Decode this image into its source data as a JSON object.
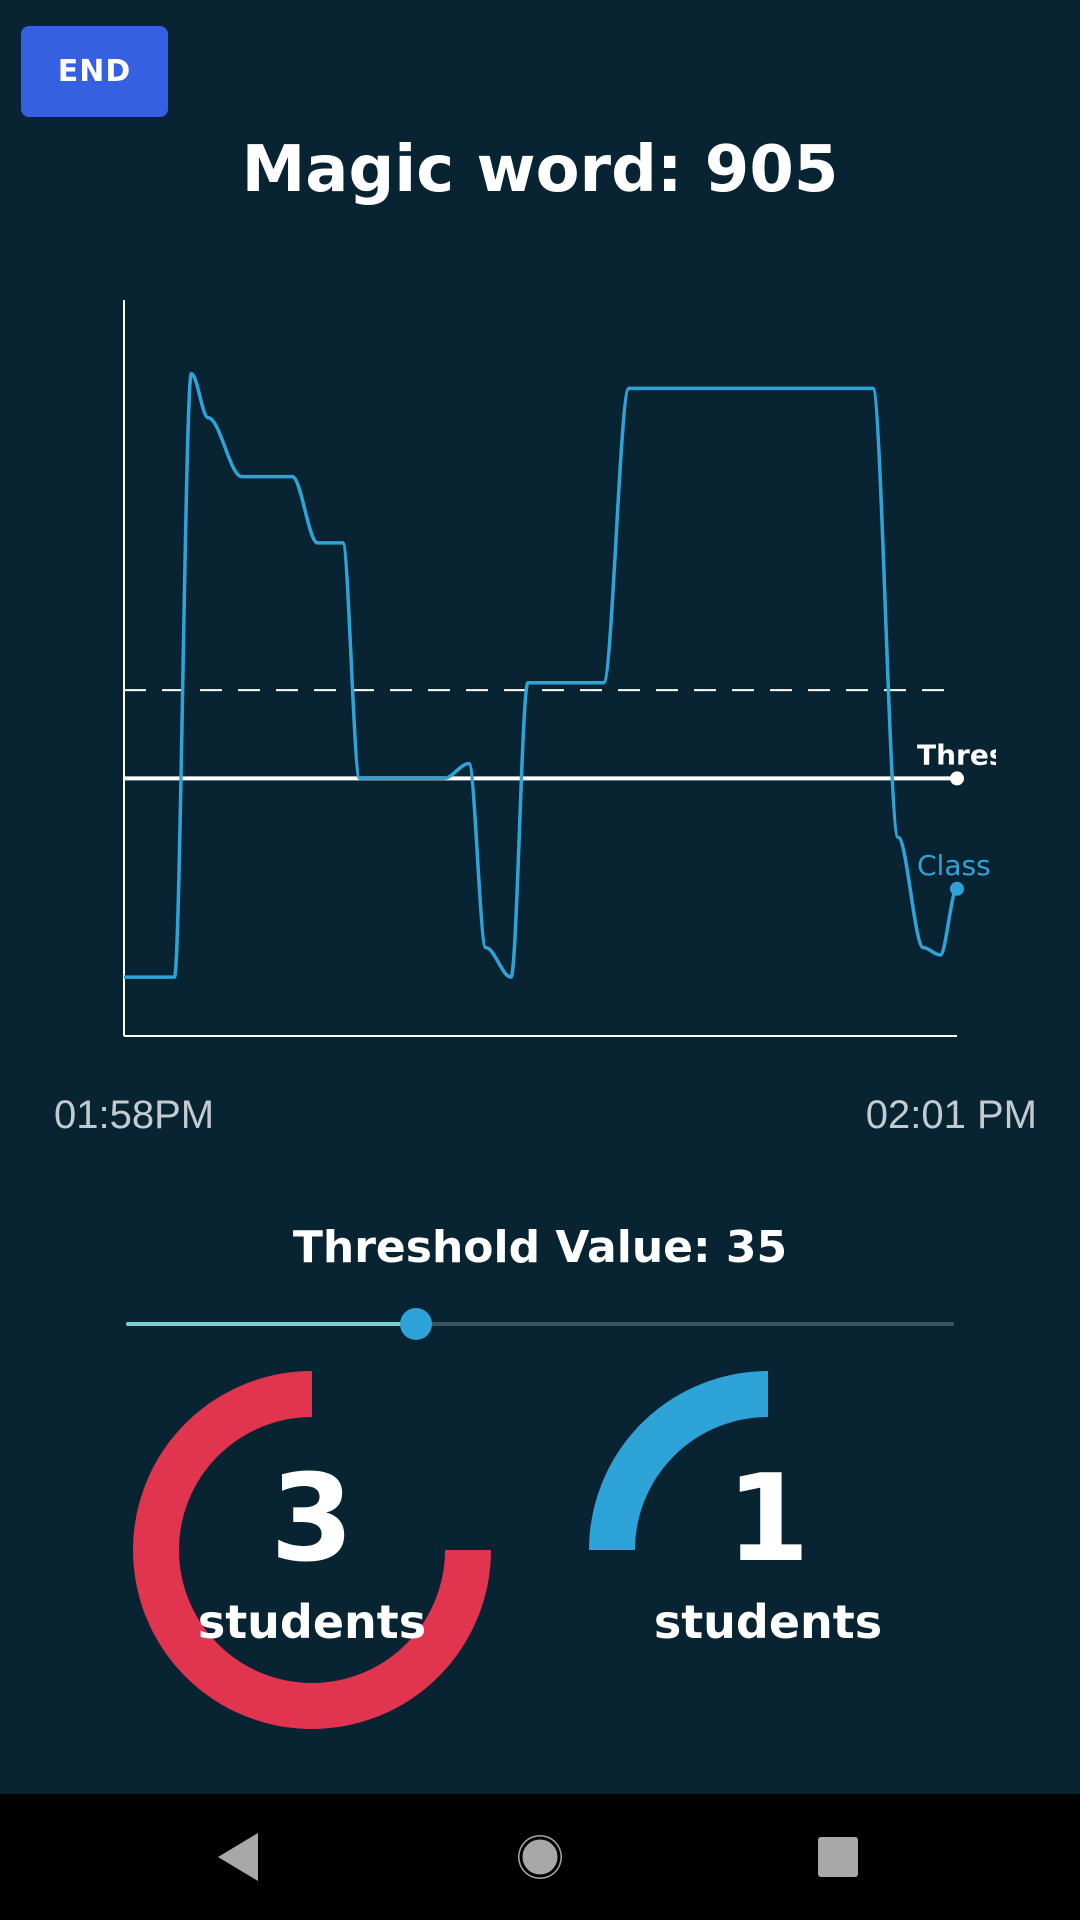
{
  "header": {
    "end_label": "END",
    "magic_word": "Magic word: 905"
  },
  "colors": {
    "background": "#082433",
    "class_line": "#2ea3d8",
    "threshold_line": "#ffffff",
    "end_button": "#3560e0",
    "gauge_red": "#e0344f",
    "gauge_blue": "#2ea3d8"
  },
  "chart_data": {
    "type": "line",
    "x_start_label": "01:58PM",
    "x_end_label": "02:01 PM",
    "ylim": [
      0,
      100
    ],
    "series": [
      {
        "name": "Class",
        "color": "#2ea3d8",
        "points": [
          [
            0,
            8
          ],
          [
            6,
            8
          ],
          [
            8,
            90
          ],
          [
            10,
            84
          ],
          [
            14,
            76
          ],
          [
            20,
            76
          ],
          [
            23,
            67
          ],
          [
            26,
            67
          ],
          [
            28,
            35
          ],
          [
            38,
            35
          ],
          [
            41,
            37
          ],
          [
            43,
            12
          ],
          [
            46,
            8
          ],
          [
            48,
            48
          ],
          [
            57,
            48
          ],
          [
            60,
            88
          ],
          [
            89,
            88
          ],
          [
            92,
            27
          ],
          [
            95,
            12
          ],
          [
            97,
            11
          ],
          [
            99,
            20
          ]
        ]
      },
      {
        "name": "Threshold",
        "color": "#ffffff",
        "points": [
          [
            0,
            35
          ],
          [
            99,
            35
          ]
        ]
      }
    ],
    "reference_line": 47
  },
  "threshold": {
    "label": "Threshold Value: 35",
    "value": 35
  },
  "gauges": [
    {
      "count": "3",
      "label": "students",
      "fraction": 0.75,
      "color": "#e0344f"
    },
    {
      "count": "1",
      "label": "students",
      "fraction": 0.25,
      "color": "#2ea3d8"
    }
  ],
  "nav": {
    "back_icon": "triangle-left",
    "home_icon": "circle",
    "recent_icon": "square"
  }
}
